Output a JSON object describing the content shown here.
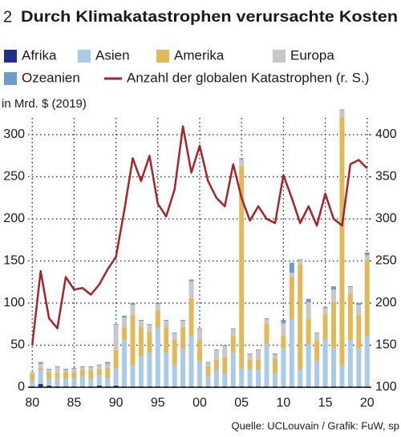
{
  "chart_data": {
    "type": "bar",
    "number": "2",
    "title": "Durch Klimakatastrophen verursachte Kosten",
    "y_label": "in Mrd. $ (2019)",
    "source": "Quelle: UCLouvain / Grafik: FuW, sp",
    "x": [
      1980,
      1981,
      1982,
      1983,
      1984,
      1985,
      1986,
      1987,
      1988,
      1989,
      1990,
      1991,
      1992,
      1993,
      1994,
      1995,
      1996,
      1997,
      1998,
      1999,
      2000,
      2001,
      2002,
      2003,
      2004,
      2005,
      2006,
      2007,
      2008,
      2009,
      2010,
      2011,
      2012,
      2013,
      2014,
      2015,
      2016,
      2017,
      2018,
      2019,
      2020
    ],
    "xlim": [
      1979.5,
      2020.5
    ],
    "xticks": [
      {
        "value": 1980,
        "label": "80"
      },
      {
        "value": 1985,
        "label": "85"
      },
      {
        "value": 1990,
        "label": "90"
      },
      {
        "value": 1995,
        "label": "95"
      },
      {
        "value": 2000,
        "label": "00"
      },
      {
        "value": 2005,
        "label": "05"
      },
      {
        "value": 2010,
        "label": "10"
      },
      {
        "value": 2015,
        "label": "15"
      },
      {
        "value": 2020,
        "label": "20"
      }
    ],
    "ylim": [
      0,
      320
    ],
    "yticks": [
      0,
      50,
      100,
      150,
      200,
      250,
      300
    ],
    "y2lim": [
      100,
      420
    ],
    "y2ticks": [
      100,
      150,
      200,
      250,
      300,
      350,
      400
    ],
    "grid": true,
    "stacked": true,
    "series": [
      {
        "name": "Afrika",
        "color": "#1f2f8a",
        "values": [
          1,
          4,
          2,
          1,
          1,
          1,
          1,
          1,
          2,
          1,
          2,
          1,
          1,
          1,
          1,
          1,
          1,
          1,
          1,
          1,
          1,
          1,
          1,
          1,
          1,
          1,
          1,
          1,
          1,
          1,
          1,
          1,
          1,
          1,
          1,
          1,
          1,
          1,
          1,
          1,
          1
        ]
      },
      {
        "name": "Asien",
        "color": "#a9cbe8",
        "values": [
          7,
          16,
          8,
          10,
          9,
          10,
          12,
          9,
          12,
          10,
          20,
          55,
          25,
          35,
          40,
          70,
          40,
          25,
          45,
          60,
          30,
          12,
          20,
          15,
          40,
          22,
          20,
          20,
          50,
          15,
          45,
          80,
          20,
          50,
          30,
          55,
          45,
          25,
          55,
          45,
          60
        ]
      },
      {
        "name": "Amerika",
        "color": "#e0b95a",
        "values": [
          8,
          3,
          8,
          6,
          8,
          7,
          7,
          10,
          7,
          12,
          22,
          15,
          60,
          35,
          25,
          20,
          30,
          30,
          25,
          45,
          25,
          12,
          12,
          20,
          20,
          240,
          12,
          12,
          25,
          18,
          15,
          50,
          125,
          30,
          25,
          30,
          55,
          295,
          55,
          40,
          90
        ]
      },
      {
        "name": "Europa",
        "color": "#c8c8c8",
        "values": [
          2,
          5,
          3,
          7,
          3,
          4,
          4,
          4,
          5,
          5,
          30,
          12,
          12,
          8,
          8,
          8,
          8,
          8,
          8,
          20,
          13,
          4,
          11,
          13,
          8,
          8,
          6,
          11,
          5,
          5,
          15,
          5,
          5,
          20,
          8,
          8,
          15,
          8,
          8,
          12,
          6
        ]
      },
      {
        "name": "Ozeanien",
        "color": "#6f9bcc",
        "values": [
          0,
          2,
          1,
          1,
          1,
          1,
          1,
          1,
          1,
          2,
          1,
          2,
          2,
          1,
          1,
          1,
          1,
          1,
          1,
          2,
          1,
          1,
          1,
          1,
          1,
          1,
          1,
          1,
          1,
          1,
          4,
          12,
          1,
          4,
          1,
          1,
          4,
          1,
          1,
          2,
          3
        ]
      },
      {
        "name": "Anzahl der globalen Katastrophen (r. S.)",
        "color": "#a3262a",
        "type": "line",
        "axis": "y2",
        "values": [
          150,
          238,
          182,
          170,
          231,
          216,
          218,
          210,
          222,
          240,
          255,
          310,
          372,
          345,
          375,
          318,
          303,
          335,
          410,
          355,
          387,
          345,
          325,
          315,
          365,
          325,
          298,
          315,
          300,
          295,
          352,
          325,
          295,
          315,
          292,
          330,
          300,
          292,
          365,
          370,
          360
        ]
      }
    ]
  }
}
